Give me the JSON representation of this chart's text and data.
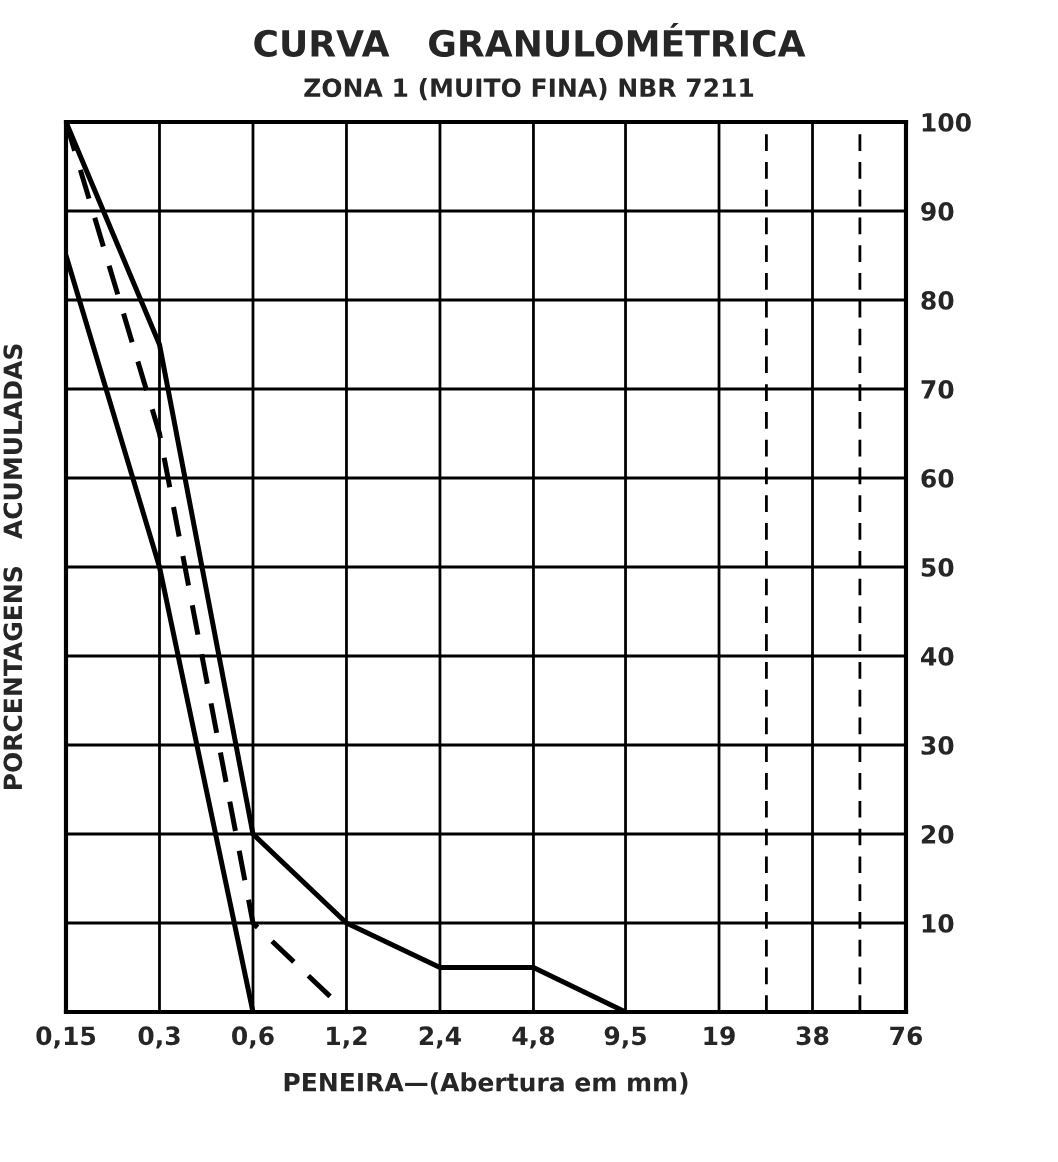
{
  "chart_data": {
    "type": "line",
    "title": "CURVA   GRANULOMÉTRICA",
    "subtitle": "ZONA 1 (MUITO FINA) NBR 7211",
    "xlabel": "PENEIRA—(Abertura em mm)",
    "ylabel": "PORCENTAGENS   ACUMULADAS",
    "log": "x",
    "xlim": [
      0.15,
      76
    ],
    "ylim": [
      0,
      100
    ],
    "xticks": [
      {
        "value": 0.15,
        "label": "0,15"
      },
      {
        "value": 0.3,
        "label": "0,3"
      },
      {
        "value": 0.6,
        "label": "0,6"
      },
      {
        "value": 1.2,
        "label": "1,2"
      },
      {
        "value": 2.4,
        "label": "2,4"
      },
      {
        "value": 4.8,
        "label": "4,8"
      },
      {
        "value": 9.5,
        "label": "9,5"
      },
      19,
      38,
      76
    ],
    "yticks": [
      10,
      20,
      30,
      40,
      50,
      60,
      70,
      80,
      90,
      100
    ],
    "grid": true,
    "marker": "none",
    "series": [
      {
        "color": "#000000",
        "line_style": "solid",
        "x": [
          0.15,
          0.3,
          0.6,
          1.2,
          2.4,
          4.8,
          9.5
        ],
        "values": [
          100,
          75,
          20,
          10,
          5,
          5,
          0
        ]
      },
      {
        "color": "#000000",
        "line_style": "dashed",
        "x": [
          0.15,
          0.3,
          0.6,
          1.2
        ],
        "values": [
          100,
          65,
          10,
          0
        ]
      },
      {
        "color": "#000000",
        "line_style": "solid",
        "x": [
          0.15,
          0.3,
          0.6
        ],
        "values": [
          85,
          50,
          0
        ]
      }
    ],
    "ref_lines": [
      {
        "axis": "x",
        "value": 27,
        "color": "#000000",
        "line_style": "dashed"
      },
      {
        "axis": "x",
        "value": 54,
        "color": "#000000",
        "line_style": "dashed"
      }
    ]
  }
}
